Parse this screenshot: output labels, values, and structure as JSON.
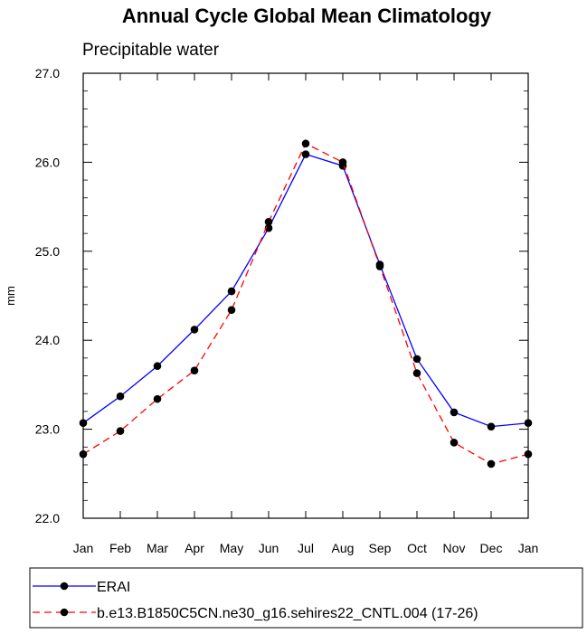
{
  "chart_data": {
    "type": "line",
    "title": "Annual Cycle Global Mean Climatology",
    "subtitle": "Precipitable water",
    "xlabel": "",
    "ylabel": "mm",
    "categories": [
      "Jan",
      "Feb",
      "Mar",
      "Apr",
      "May",
      "Jun",
      "Jul",
      "Aug",
      "Sep",
      "Oct",
      "Nov",
      "Dec",
      "Jan"
    ],
    "yticks": [
      "22.0",
      "23.0",
      "24.0",
      "25.0",
      "26.0",
      "27.0"
    ],
    "ylim": [
      22.0,
      27.0
    ],
    "grid": false,
    "legend_position": "bottom",
    "series": [
      {
        "name": "ERAI",
        "color": "#0000ff",
        "dash": "solid",
        "values": [
          23.07,
          23.37,
          23.71,
          24.12,
          24.55,
          25.26,
          26.09,
          25.96,
          24.85,
          23.79,
          23.19,
          23.03,
          23.07
        ]
      },
      {
        "name": "b.e13.B1850C5CN.ne30_g16.sehires22_CNTL.004 (17-26)",
        "color": "#ff0000",
        "dash": "dashed",
        "values": [
          22.72,
          22.98,
          23.34,
          23.66,
          24.34,
          25.33,
          26.21,
          26.0,
          24.83,
          23.63,
          22.85,
          22.61,
          22.72
        ]
      }
    ]
  }
}
